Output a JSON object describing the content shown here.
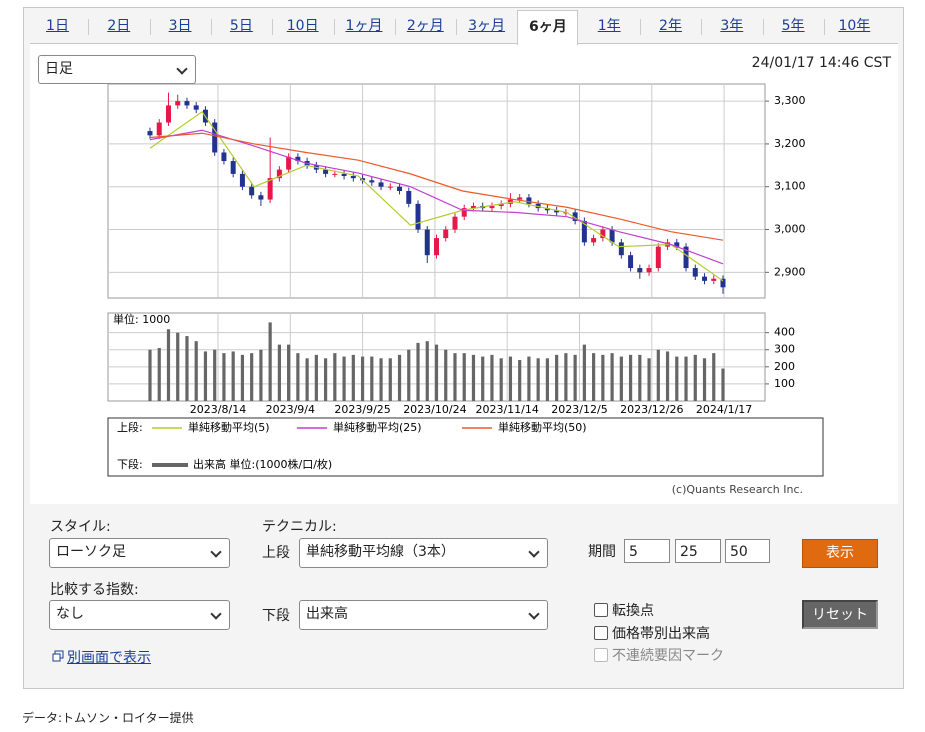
{
  "tabs": [
    "1日",
    "2日",
    "3日",
    "5日",
    "10日",
    "1ヶ月",
    "2ヶ月",
    "3ヶ月",
    "6ヶ月",
    "1年",
    "2年",
    "3年",
    "5年",
    "10年"
  ],
  "active_tab": 8,
  "interval_select": "日足",
  "timestamp": "24/01/17 14:46 CST",
  "chart": {
    "type": "candlestick",
    "ylim": [
      2840,
      3340
    ],
    "yticks": [
      {
        "value": 2900,
        "label": "2,900"
      },
      {
        "value": 3000,
        "label": "3,000"
      },
      {
        "value": 3100,
        "label": "3,100"
      },
      {
        "value": 3200,
        "label": "3,200"
      },
      {
        "value": 3300,
        "label": "3,300"
      }
    ],
    "up_color": "#e8174a",
    "down_color": "#22338f",
    "candles": [
      [
        3230,
        3238,
        3212,
        3220
      ],
      [
        3220,
        3258,
        3212,
        3250
      ],
      [
        3250,
        3320,
        3242,
        3290
      ],
      [
        3290,
        3315,
        3282,
        3300
      ],
      [
        3300,
        3308,
        3282,
        3290
      ],
      [
        3290,
        3298,
        3272,
        3280
      ],
      [
        3280,
        3288,
        3242,
        3250
      ],
      [
        3250,
        3258,
        3172,
        3180
      ],
      [
        3180,
        3188,
        3152,
        3160
      ],
      [
        3160,
        3168,
        3122,
        3130
      ],
      [
        3130,
        3138,
        3092,
        3100
      ],
      [
        3100,
        3108,
        3072,
        3080
      ],
      [
        3080,
        3088,
        3055,
        3070
      ],
      [
        3070,
        3215,
        3062,
        3120
      ],
      [
        3120,
        3148,
        3112,
        3140
      ],
      [
        3140,
        3178,
        3132,
        3170
      ],
      [
        3170,
        3178,
        3152,
        3160
      ],
      [
        3160,
        3168,
        3142,
        3150
      ],
      [
        3150,
        3158,
        3132,
        3140
      ],
      [
        3140,
        3148,
        3122,
        3130
      ],
      [
        3130,
        3138,
        3122,
        3130
      ],
      [
        3130,
        3138,
        3117,
        3125
      ],
      [
        3125,
        3133,
        3112,
        3120
      ],
      [
        3120,
        3128,
        3107,
        3115
      ],
      [
        3115,
        3123,
        3102,
        3110
      ],
      [
        3110,
        3118,
        3092,
        3100
      ],
      [
        3100,
        3108,
        3092,
        3100
      ],
      [
        3100,
        3108,
        3082,
        3090
      ],
      [
        3090,
        3098,
        3052,
        3060
      ],
      [
        3060,
        3068,
        2992,
        3000
      ],
      [
        3000,
        3008,
        2922,
        2940
      ],
      [
        2940,
        2988,
        2932,
        2980
      ],
      [
        2980,
        3008,
        2972,
        3000
      ],
      [
        3000,
        3038,
        2992,
        3030
      ],
      [
        3030,
        3058,
        3022,
        3050
      ],
      [
        3050,
        3063,
        3042,
        3055
      ],
      [
        3055,
        3063,
        3042,
        3050
      ],
      [
        3050,
        3063,
        3042,
        3055
      ],
      [
        3055,
        3068,
        3047,
        3060
      ],
      [
        3060,
        3085,
        3052,
        3070
      ],
      [
        3070,
        3083,
        3062,
        3075
      ],
      [
        3075,
        3083,
        3052,
        3060
      ],
      [
        3060,
        3068,
        3042,
        3050
      ],
      [
        3050,
        3058,
        3037,
        3045
      ],
      [
        3045,
        3053,
        3032,
        3040
      ],
      [
        3040,
        3048,
        3032,
        3040
      ],
      [
        3040,
        3048,
        3012,
        3020
      ],
      [
        3020,
        3028,
        2962,
        2970
      ],
      [
        2970,
        2988,
        2962,
        2980
      ],
      [
        2980,
        3008,
        2972,
        3000
      ],
      [
        3000,
        3008,
        2962,
        2970
      ],
      [
        2970,
        2978,
        2932,
        2940
      ],
      [
        2940,
        2948,
        2902,
        2910
      ],
      [
        2910,
        2918,
        2885,
        2900
      ],
      [
        2900,
        2918,
        2892,
        2910
      ],
      [
        2910,
        2968,
        2902,
        2960
      ],
      [
        2960,
        2978,
        2952,
        2970
      ],
      [
        2970,
        2978,
        2952,
        2960
      ],
      [
        2960,
        2968,
        2902,
        2910
      ],
      [
        2910,
        2918,
        2882,
        2890
      ],
      [
        2890,
        2898,
        2872,
        2880
      ],
      [
        2880,
        2893,
        2872,
        2885
      ],
      [
        2885,
        2893,
        2850,
        2865
      ]
    ],
    "moving_averages": [
      {
        "name": "単純移動平均(5)",
        "color": "#b5cc2e",
        "values": [
          3190,
          3275,
          3100,
          3150,
          3125,
          3010,
          3045,
          3065,
          3040,
          2960,
          2965,
          2880
        ]
      },
      {
        "name": "単純移動平均(25)",
        "color": "#c23fd0",
        "values": [
          3210,
          3232,
          3195,
          3155,
          3132,
          3100,
          3045,
          3040,
          3030,
          2995,
          2965,
          2920
        ]
      },
      {
        "name": "単純移動平均(50)",
        "color": "#ec5a2c",
        "values": [
          3215,
          3225,
          3200,
          3180,
          3162,
          3130,
          3090,
          3070,
          3052,
          3025,
          2995,
          2975
        ]
      }
    ],
    "volume": {
      "unit_label": "単位: 1000",
      "name": "出来高 単位:(1000株/口/枚)",
      "color": "#666666",
      "ylim": [
        0,
        515
      ],
      "yticks": [
        100,
        200,
        300,
        400
      ],
      "values": [
        300,
        310,
        420,
        400,
        380,
        350,
        290,
        300,
        280,
        290,
        270,
        280,
        300,
        460,
        330,
        330,
        280,
        250,
        270,
        250,
        280,
        260,
        270,
        260,
        260,
        250,
        250,
        270,
        300,
        340,
        350,
        330,
        300,
        280,
        280,
        270,
        260,
        270,
        250,
        260,
        240,
        260,
        250,
        250,
        270,
        280,
        270,
        330,
        280,
        270,
        280,
        260,
        270,
        270,
        250,
        300,
        290,
        260,
        260,
        270,
        250,
        280,
        190
      ]
    },
    "x_labels": [
      "2023/8/14",
      "2023/9/4",
      "2023/9/25",
      "2023/10/24",
      "2023/11/14",
      "2023/12/5",
      "2023/12/26",
      "2024/1/17"
    ],
    "legend": {
      "upper_label": "上段:",
      "lower_label": "下段:"
    },
    "credit": "(c)Quants Research Inc."
  },
  "controls": {
    "style_label": "スタイル:",
    "style_value": "ローソク足",
    "technical_label": "テクニカル:",
    "upper_label": "上段",
    "upper_value": "単純移動平均線（3本）",
    "period_label": "期間",
    "periods": [
      5,
      25,
      50
    ],
    "show_button": "表示",
    "compare_label": "比較する指数:",
    "compare_value": "なし",
    "lower_label": "下段",
    "lower_value": "出来高",
    "checkboxes": [
      "転換点",
      "価格帯別出来高",
      "不連続要因マーク"
    ],
    "reset_button": "リセット",
    "popup_link": "別画面で表示"
  },
  "footer": "データ:トムソン・ロイター提供"
}
